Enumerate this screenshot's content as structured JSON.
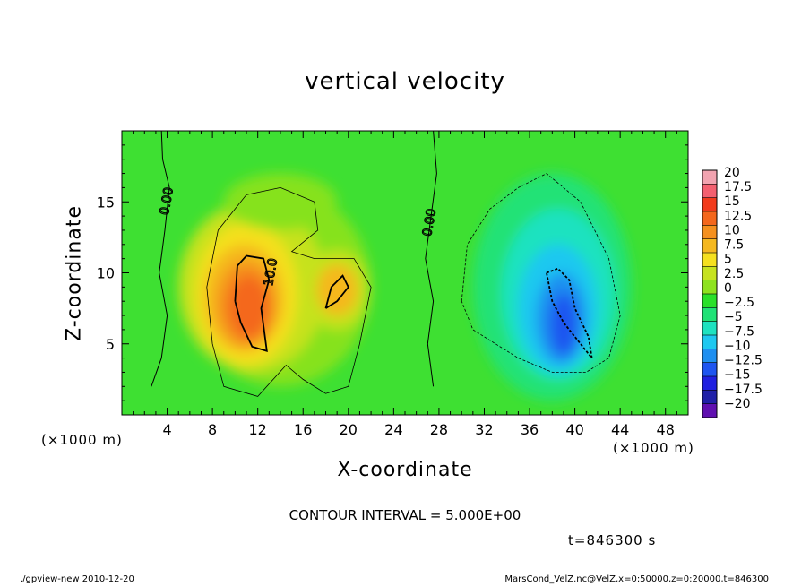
{
  "chart_data": {
    "type": "heatmap",
    "title": "vertical velocity",
    "xlabel": "X-coordinate",
    "ylabel": "Z-coordinate",
    "x_unit": "(×1000 m)",
    "y_unit": "(×1000 m)",
    "xlim": [
      0,
      50
    ],
    "ylim": [
      0,
      20
    ],
    "xticks": [
      4,
      8,
      12,
      16,
      20,
      24,
      28,
      32,
      36,
      40,
      44,
      48
    ],
    "yticks": [
      5,
      10,
      15
    ],
    "colorbar": {
      "levels": [
        "20",
        "17.5",
        "15",
        "12.5",
        "10",
        "7.5",
        "5",
        "2.5",
        "0",
        "−2.5",
        "−5",
        "−7.5",
        "−10",
        "−12.5",
        "−15",
        "−17.5",
        "−20"
      ],
      "colors": [
        "#f2a3b0",
        "#f46070",
        "#f23b1c",
        "#f4671c",
        "#f5901e",
        "#f5b81f",
        "#f5e01f",
        "#c6e21f",
        "#8ee21f",
        "#2ae02a",
        "#20e276",
        "#1ee2c0",
        "#1ec8f0",
        "#1e8ff0",
        "#1e55f0",
        "#2020e0",
        "#2020a8",
        "#6010b0"
      ]
    },
    "features": [
      {
        "kind": "updraft",
        "x": 11,
        "z": 8.5,
        "peak": 12.5
      },
      {
        "kind": "updraft",
        "x": 19,
        "z": 9,
        "peak": 10
      },
      {
        "kind": "downdraft",
        "x": 38.5,
        "z": 7.5,
        "peak": -10
      }
    ],
    "contour_labels": [
      {
        "text": "0.00",
        "x": 4.3,
        "z": 15
      },
      {
        "text": "10.0",
        "x": 13.5,
        "z": 10
      },
      {
        "text": "0.00",
        "x": 27.5,
        "z": 13.5
      }
    ]
  },
  "annotations": {
    "contour_interval": "CONTOUR INTERVAL = 5.000E+00",
    "time": "t=846300 s",
    "footer_left": "./gpview-new   2010-12-20",
    "footer_right": "MarsCond_VelZ.nc@VelZ,x=0:50000,z=0:20000,t=846300"
  }
}
